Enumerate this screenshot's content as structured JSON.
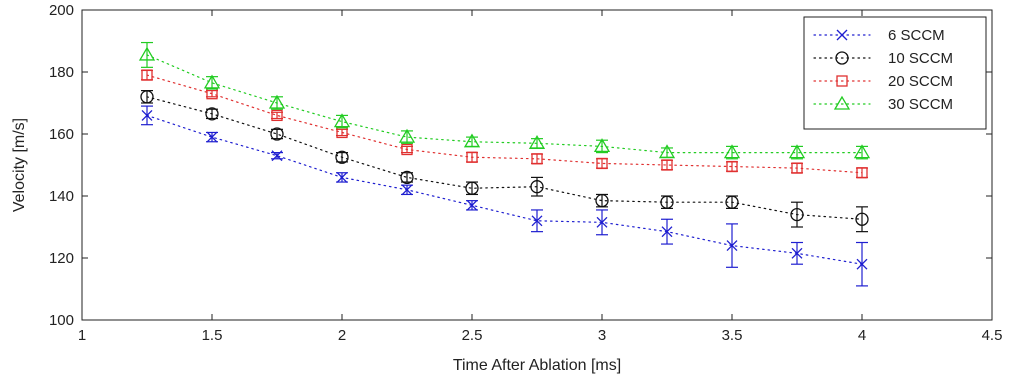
{
  "chart_data": {
    "type": "scatter",
    "title": "",
    "xlabel": "Time After Ablation [ms]",
    "ylabel": "Velocity [m/s]",
    "xlim": [
      1,
      4.5
    ],
    "ylim": [
      100,
      200
    ],
    "xticks": [
      1,
      1.5,
      2,
      2.5,
      3,
      3.5,
      4,
      4.5
    ],
    "xtick_labels": [
      "1",
      "1.5",
      "2",
      "2.5",
      "3",
      "3.5",
      "4",
      "4.5"
    ],
    "yticks": [
      100,
      120,
      140,
      160,
      180,
      200
    ],
    "ytick_labels": [
      "100",
      "120",
      "140",
      "160",
      "180",
      "200"
    ],
    "grid": false,
    "legend_position": "top-right",
    "line_style": "dotted",
    "error_bars": true,
    "x": [
      1.25,
      1.5,
      1.75,
      2.0,
      2.25,
      2.5,
      2.75,
      3.0,
      3.25,
      3.5,
      3.75,
      4.0
    ],
    "series": [
      {
        "name": "6 SCCM",
        "marker": "x",
        "color": "#1f1fd0",
        "values": [
          166,
          159,
          153,
          146,
          142,
          137,
          132,
          131.5,
          128.5,
          124,
          121.5,
          118
        ],
        "errors": [
          3,
          1.5,
          1,
          1.5,
          1.5,
          1.5,
          3.5,
          4,
          4,
          7,
          3.5,
          7
        ]
      },
      {
        "name": "10 SCCM",
        "marker": "circle",
        "color": "#111111",
        "values": [
          172,
          166.5,
          160,
          152.5,
          146,
          142.5,
          143,
          138.5,
          138,
          138,
          134,
          132.5
        ],
        "errors": [
          2,
          1.5,
          1.5,
          1.5,
          1.5,
          2,
          3,
          2,
          2,
          2,
          4,
          4
        ]
      },
      {
        "name": "20 SCCM",
        "marker": "square",
        "color": "#e03030",
        "values": [
          179,
          173,
          166,
          160.5,
          155,
          152.5,
          152,
          150.5,
          150,
          149.5,
          149,
          147.5
        ],
        "errors": [
          1.5,
          1,
          1,
          1,
          1,
          1.5,
          1.5,
          1.5,
          1.5,
          1.5,
          1.5,
          1.5
        ]
      },
      {
        "name": "30 SCCM",
        "marker": "triangle",
        "color": "#22cc22",
        "values": [
          185.5,
          176.5,
          170,
          164,
          159,
          157.5,
          157,
          156,
          154,
          154,
          154,
          154
        ],
        "errors": [
          4,
          2,
          2,
          2,
          2,
          1.5,
          1.5,
          2,
          1.5,
          2,
          2,
          2
        ]
      }
    ]
  }
}
